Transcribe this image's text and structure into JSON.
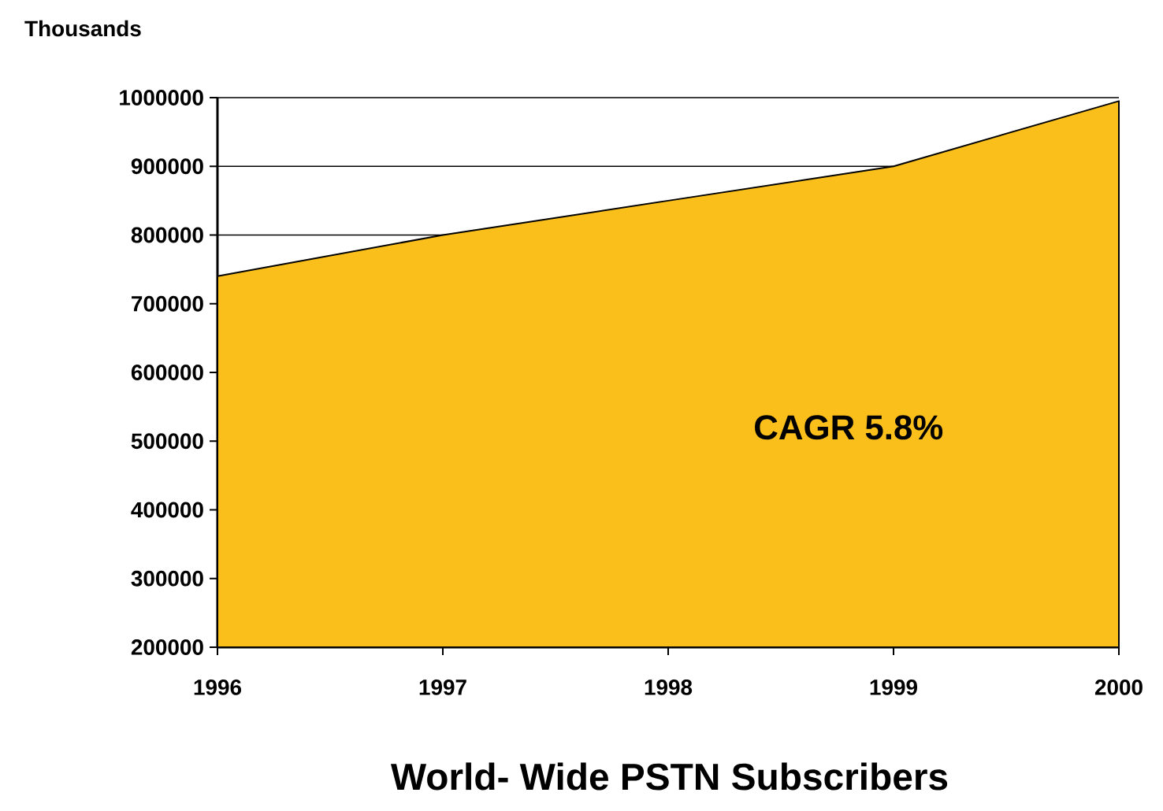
{
  "chart_data": {
    "type": "area",
    "title": "World- Wide PSTN Subscribers",
    "ylabel": "Thousands",
    "annotations": [
      "CAGR 5.8%"
    ],
    "x": [
      1996,
      1997,
      1998,
      1999,
      2000
    ],
    "values": [
      740000,
      800000,
      850000,
      900000,
      995000
    ],
    "color": "#fbbf1c",
    "xlim": [
      1996,
      2000
    ],
    "xticks": [
      1996,
      1997,
      1998,
      1999,
      2000
    ],
    "ylim": [
      200000,
      1000000
    ],
    "yticks": [
      200000,
      300000,
      400000,
      500000,
      600000,
      700000,
      800000,
      900000,
      1000000
    ],
    "grid": "y"
  }
}
